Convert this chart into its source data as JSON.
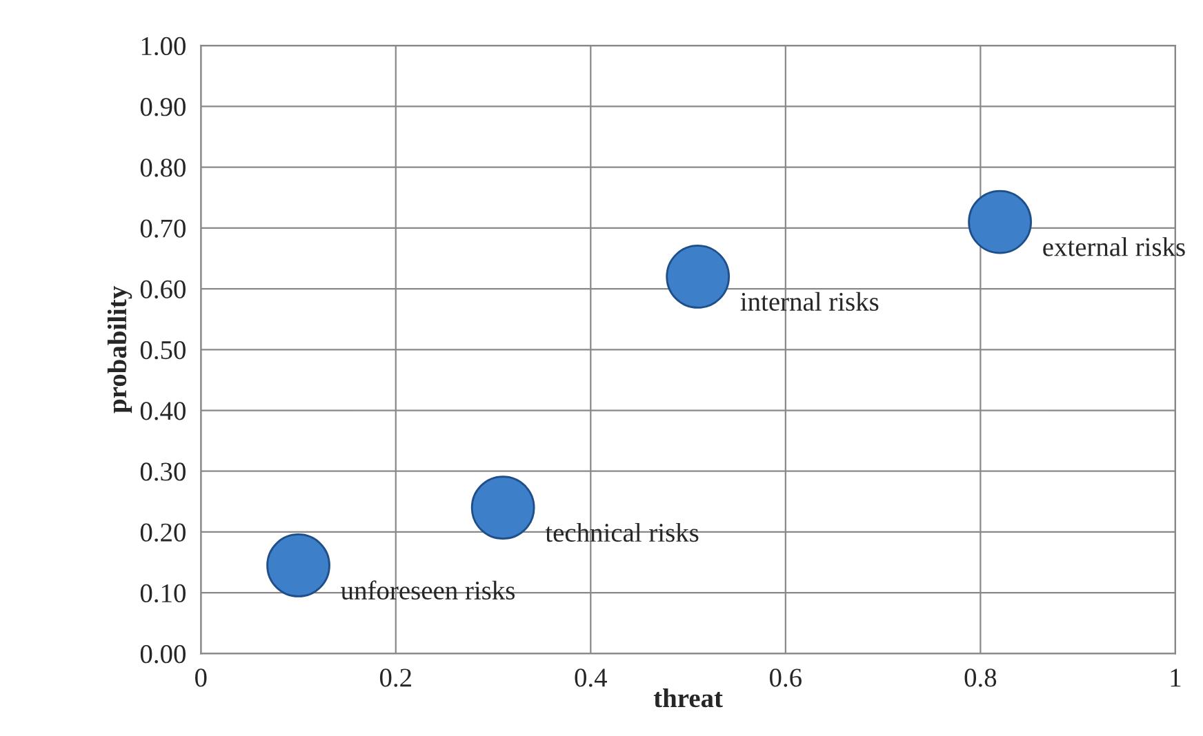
{
  "chart_data": {
    "type": "scatter",
    "xlabel": "threat",
    "ylabel": "probability",
    "x": [
      0.1,
      0.31,
      0.51,
      0.82
    ],
    "values": [
      0.145,
      0.24,
      0.62,
      0.71
    ],
    "color": "#3d7fc8",
    "marker": "circle",
    "grid": true,
    "xlim": [
      0,
      1
    ],
    "ylim": [
      0,
      1
    ],
    "xticks": [
      0,
      0.2,
      0.4,
      0.6,
      0.8,
      1
    ],
    "yticks": [
      {
        "value": 0,
        "label": "0.00"
      },
      {
        "value": 0.1,
        "label": "0.10"
      },
      {
        "value": 0.2,
        "label": "0.20"
      },
      {
        "value": 0.3,
        "label": "0.30"
      },
      {
        "value": 0.4,
        "label": "0.40"
      },
      {
        "value": 0.5,
        "label": "0.50"
      },
      {
        "value": 0.6,
        "label": "0.60"
      },
      {
        "value": 0.7,
        "label": "0.70"
      },
      {
        "value": 0.8,
        "label": "0.80"
      },
      {
        "value": 0.9,
        "label": "0.90"
      },
      {
        "value": 1,
        "label": "1.00"
      }
    ],
    "annotations": [
      {
        "text": "unforeseen risks",
        "x": 0.1,
        "y": 0.145
      },
      {
        "text": "technical risks",
        "x": 0.31,
        "y": 0.24
      },
      {
        "text": "internal risks",
        "x": 0.51,
        "y": 0.62
      },
      {
        "text": "external risks",
        "x": 0.82,
        "y": 0.71
      }
    ]
  }
}
